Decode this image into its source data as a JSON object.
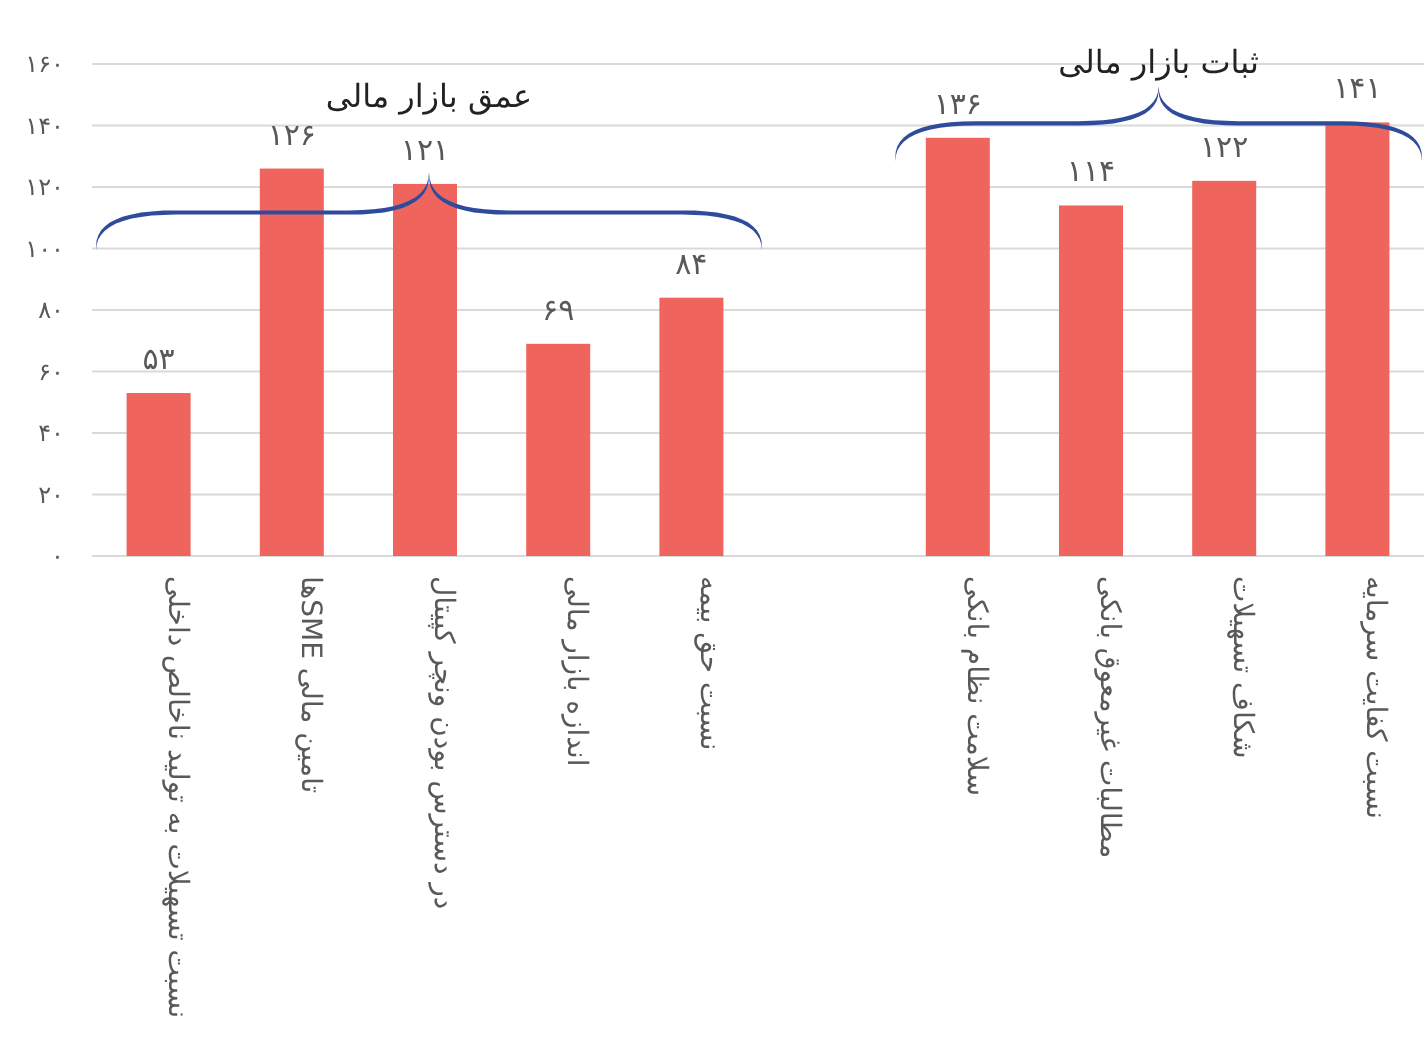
{
  "chart_data": {
    "type": "bar",
    "categories": [
      "نسبت تسهیلات به تولید ناخالص داخلی",
      "تامین مالی SMEها",
      "در دسترس بودن ونچر کپیتال",
      "اندازه بازار مالی",
      "نسبت حق بیمه",
      null,
      "سلامت نظام بانکی",
      "مطالبات غیرمعوق بانکی",
      "شکاف تسهیلات",
      "نسبت کفایت سرمایه"
    ],
    "values": [
      53,
      126,
      121,
      69,
      84,
      null,
      136,
      114,
      122,
      141
    ],
    "value_labels": [
      "۵۳",
      "۱۲۶",
      "۱۲۱",
      "۶۹",
      "۸۴",
      null,
      "۱۳۶",
      "۱۱۴",
      "۱۲۲",
      "۱۴۱"
    ],
    "color": "#f0645e",
    "ylim": [
      0,
      160
    ],
    "yticks": [
      {
        "value": 0,
        "label": "۰"
      },
      {
        "value": 20,
        "label": "۲۰"
      },
      {
        "value": 40,
        "label": "۴۰"
      },
      {
        "value": 60,
        "label": "۶۰"
      },
      {
        "value": 80,
        "label": "۸۰"
      },
      {
        "value": 100,
        "label": "۱۰۰"
      },
      {
        "value": 120,
        "label": "۱۲۰"
      },
      {
        "value": 140,
        "label": "۱۴۰"
      },
      {
        "value": 160,
        "label": "۱۶۰"
      }
    ],
    "grid": "y",
    "annotations": [
      "عمق بازار مالی",
      "ثبات بازار مالی"
    ]
  }
}
